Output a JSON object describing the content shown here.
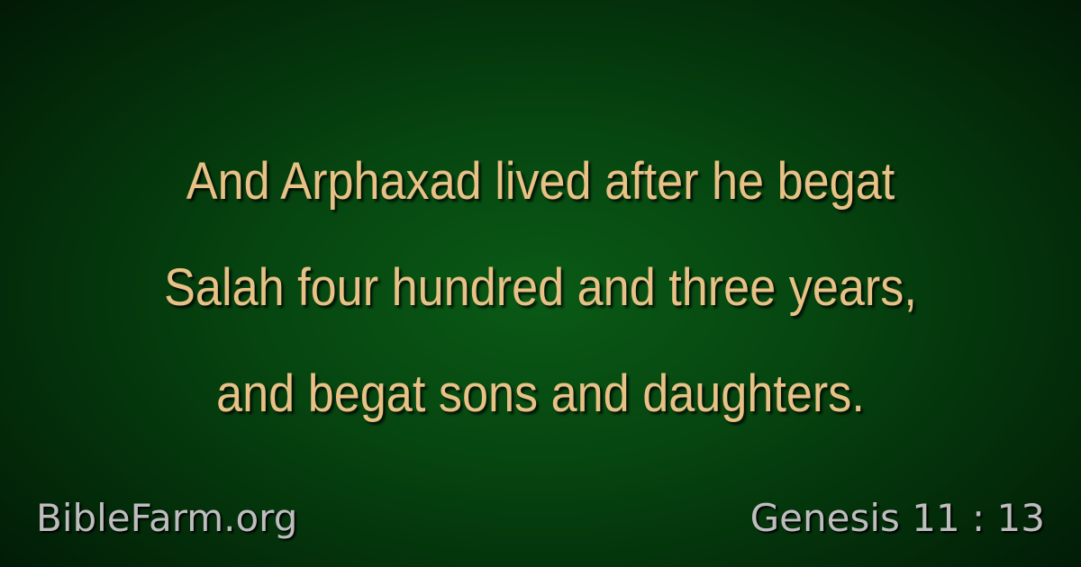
{
  "verse": {
    "lines": [
      "And Arphaxad lived after he begat",
      "Salah four hundred and three years,",
      "and begat sons and daughters."
    ]
  },
  "footer": {
    "site": "BibleFarm.org",
    "reference": "Genesis 11 : 13"
  },
  "colors": {
    "verse_text": "#e7c185",
    "footer_text": "#bdbdbd",
    "background_center": "#0a5a16",
    "background_edge": "#011204"
  }
}
